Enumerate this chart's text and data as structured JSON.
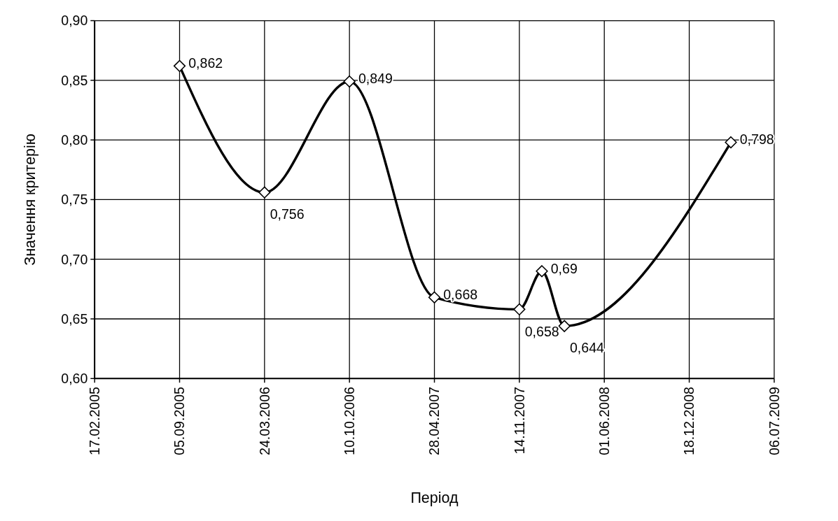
{
  "chart_data": {
    "type": "line",
    "xlabel": "Період",
    "ylabel": "Значення критерію",
    "x": [
      "2005-09-05",
      "2006-03-24",
      "2006-10-10",
      "2007-04-28",
      "2007-11-14",
      "2008-01-06",
      "2008-02-28",
      "2009-03-26"
    ],
    "series": [
      {
        "color": "#000000",
        "values": [
          0.862,
          0.756,
          0.849,
          0.668,
          0.658,
          0.69,
          0.644,
          0.798
        ],
        "value_labels": [
          "0,862",
          "0,756",
          "0,849",
          "0,668",
          "0,658",
          "0,69",
          "0,644",
          "0,798"
        ]
      }
    ],
    "xlim": [
      "2005-02-17",
      "2009-07-06"
    ],
    "xticks": [
      {
        "value": "2005-02-17",
        "label": "17.02.2005"
      },
      {
        "value": "2005-09-05",
        "label": "05.09.2005"
      },
      {
        "value": "2006-03-24",
        "label": "24.03.2006"
      },
      {
        "value": "2006-10-10",
        "label": "10.10.2006"
      },
      {
        "value": "2007-04-28",
        "label": "28.04.2007"
      },
      {
        "value": "2007-11-14",
        "label": "14.11.2007"
      },
      {
        "value": "2008-06-01",
        "label": "01.06.2008"
      },
      {
        "value": "2008-12-18",
        "label": "18.12.2008"
      },
      {
        "value": "2009-07-06",
        "label": "06.07.2009"
      }
    ],
    "ylim": [
      0.6,
      0.9
    ],
    "yticks": [
      {
        "value": 0.6,
        "label": "0,60"
      },
      {
        "value": 0.65,
        "label": "0,65"
      },
      {
        "value": 0.7,
        "label": "0,70"
      },
      {
        "value": 0.75,
        "label": "0,75"
      },
      {
        "value": 0.8,
        "label": "0,80"
      },
      {
        "value": 0.85,
        "label": "0,85"
      },
      {
        "value": 0.9,
        "label": "0,90"
      }
    ],
    "grid": true,
    "marker": "diamond",
    "line_style": "solid"
  }
}
